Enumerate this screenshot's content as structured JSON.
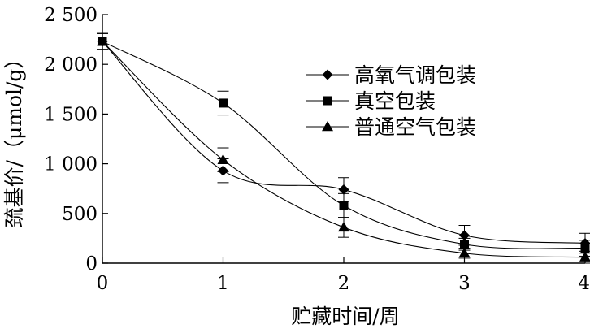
{
  "chart_data": {
    "type": "line",
    "xlabel": "贮藏时间/周",
    "ylabel": "巯基价/（μmol/g）",
    "x": [
      0,
      1,
      2,
      3,
      4
    ],
    "xlim": [
      0,
      4
    ],
    "ylim": [
      0,
      2500
    ],
    "xticks": [
      0,
      1,
      2,
      3,
      4
    ],
    "yticks": [
      0,
      500,
      1000,
      1500,
      2000,
      2500
    ],
    "xtick_labels": [
      "0",
      "1",
      "2",
      "3",
      "4"
    ],
    "ytick_labels": [
      "0",
      "500",
      "1 000",
      "1 500",
      "2 000",
      "2 500"
    ],
    "grid": false,
    "legend_position": "top-right",
    "series": [
      {
        "name": "高氧气调包装",
        "marker": "diamond",
        "values": [
          2230,
          930,
          740,
          280,
          200
        ],
        "errors": [
          80,
          120,
          120,
          100,
          100
        ]
      },
      {
        "name": "真空包装",
        "marker": "square",
        "values": [
          2230,
          1610,
          580,
          190,
          150
        ],
        "errors": [
          80,
          120,
          120,
          60,
          80
        ]
      },
      {
        "name": "普通空气包装",
        "marker": "triangle",
        "values": [
          2230,
          1040,
          360,
          100,
          60
        ],
        "errors": [
          80,
          120,
          100,
          50,
          60
        ]
      }
    ]
  }
}
